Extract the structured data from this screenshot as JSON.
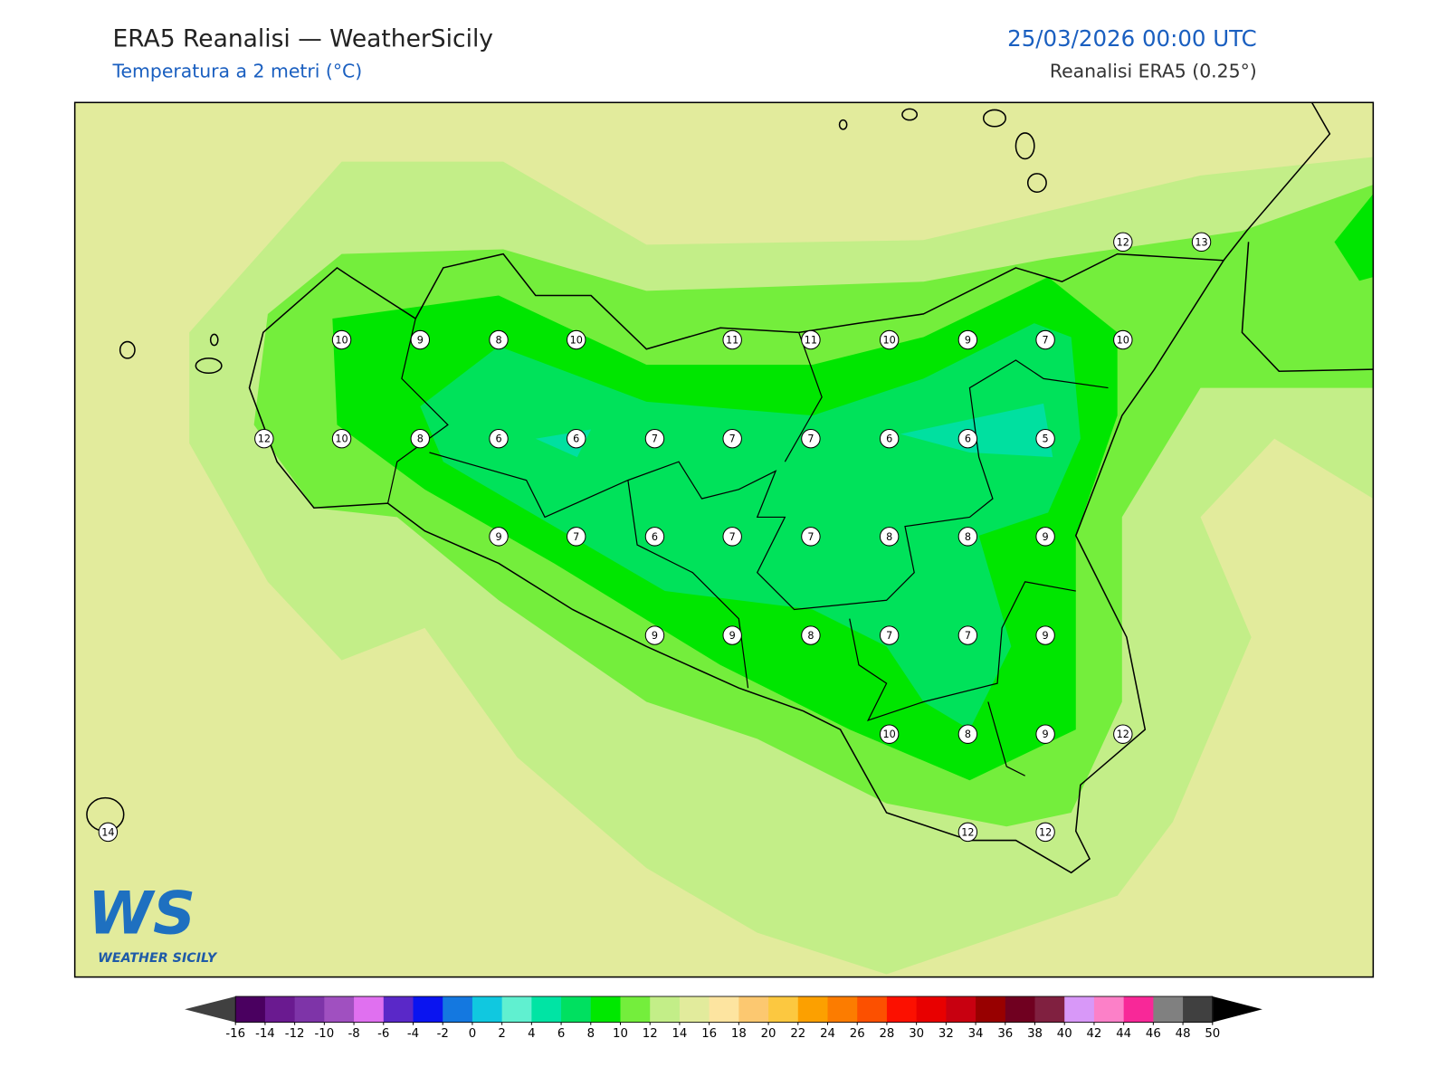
{
  "header": {
    "title": "ERA5 Reanalisi — WeatherSicily",
    "subtitle": "Temperatura a 2 metri (°C)",
    "datetime": "25/03/2026 00:00 UTC",
    "source": "Reanalisi ERA5 (0.25°)"
  },
  "stations": [
    12,
    13,
    10,
    9,
    8,
    10,
    11,
    11,
    10,
    9,
    7,
    10,
    12,
    10,
    8,
    6,
    6,
    7,
    7,
    7,
    6,
    6,
    5,
    9,
    7,
    6,
    7,
    7,
    8,
    8,
    9,
    9,
    9,
    8,
    7,
    7,
    9,
    10,
    8,
    9,
    12,
    14,
    12,
    12
  ],
  "colorbar": {
    "ticks": [
      -16,
      -14,
      -12,
      -10,
      -8,
      -6,
      -4,
      -2,
      0,
      2,
      4,
      6,
      8,
      10,
      12,
      14,
      16,
      18,
      20,
      22,
      24,
      26,
      28,
      30,
      32,
      34,
      36,
      38,
      40,
      42,
      44,
      46,
      48,
      50
    ],
    "colors": [
      "#4a0060",
      "#6a1a90",
      "#7e34a8",
      "#a050c0",
      "#e070f0",
      "#5a28c8",
      "#0a14f0",
      "#1478e0",
      "#10c8e0",
      "#60f0d0",
      "#00e4a4",
      "#00e060",
      "#00e800",
      "#74ee3c",
      "#c3ee88",
      "#e2eb9c",
      "#fde4a0",
      "#fcc870",
      "#fcc840",
      "#fca000",
      "#fc7c00",
      "#fc5000",
      "#fc1000",
      "#e80000",
      "#c80010",
      "#980000",
      "#700020",
      "#802040",
      "#d898f8",
      "#fc80c8",
      "#f82898",
      "#808080",
      "#404040"
    ],
    "under": "#404040",
    "over": "#000000"
  },
  "logo": {
    "mark": "WS",
    "name": "WEATHER SICILY"
  }
}
